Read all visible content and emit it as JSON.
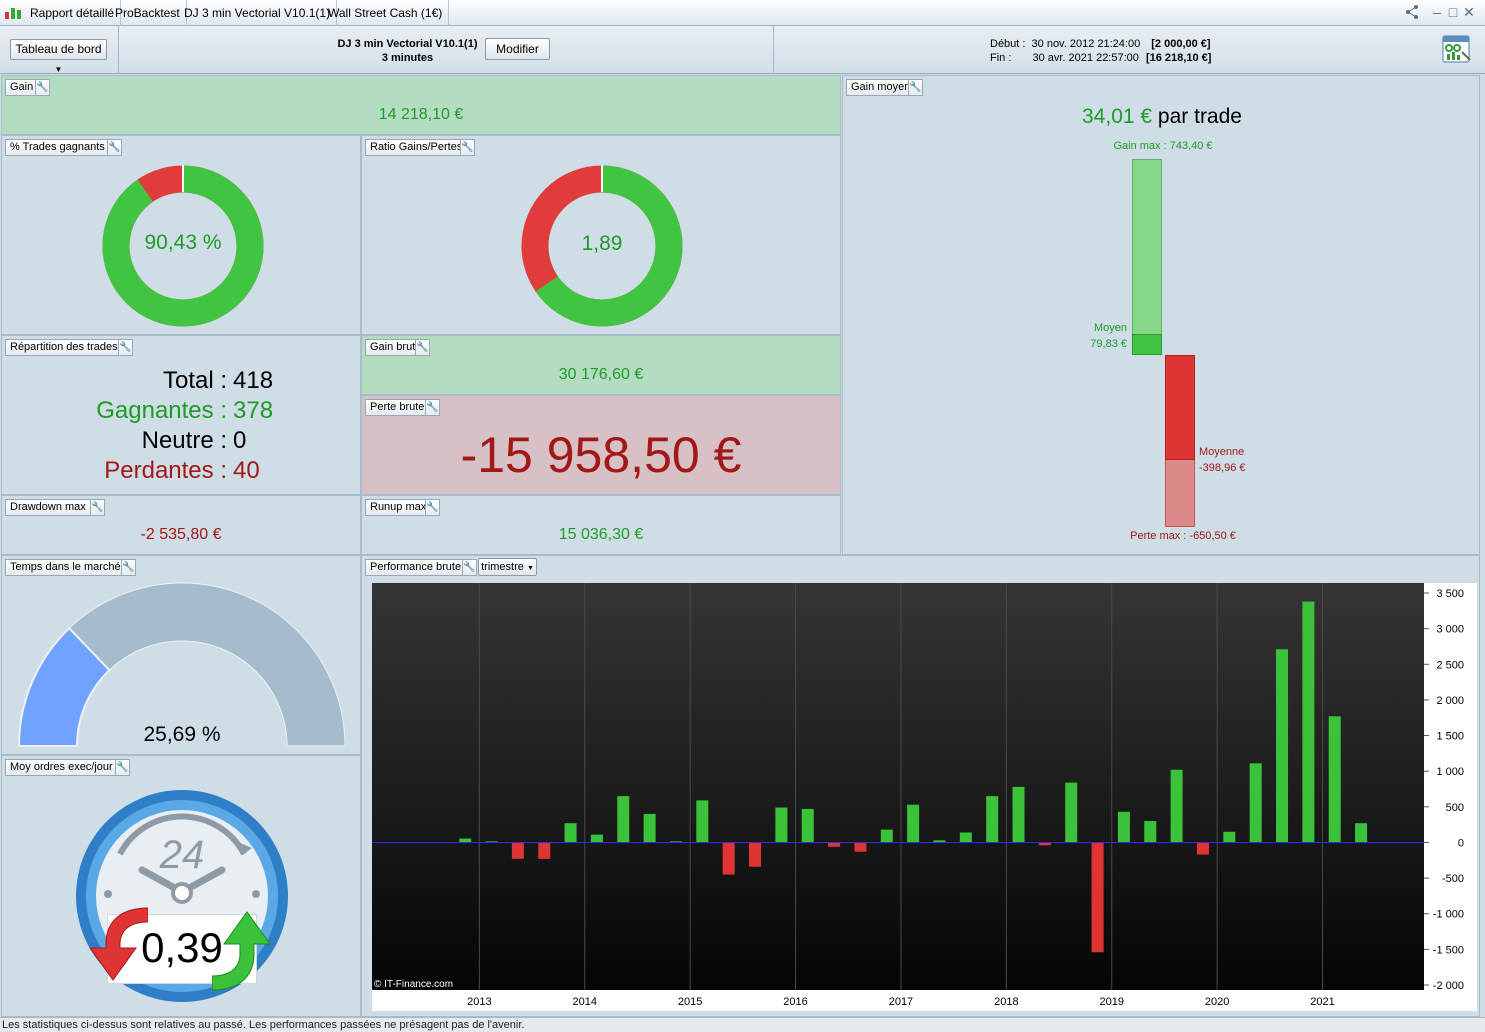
{
  "titlebar": {
    "tabs": [
      "Rapport détaillé",
      "ProBacktest",
      "DJ 3 min Vectorial V10.1(1)",
      "Wall Street Cash (1€)"
    ]
  },
  "header": {
    "dashboard_label": "Tableau de bord",
    "strategy_name": "DJ 3 min Vectorial V10.1(1)",
    "timeframe": "3 minutes",
    "modify_label": "Modifier",
    "start_label": "Début :",
    "start_date": "30 nov. 2012 21:24:00",
    "start_capital": "[2 000,00 €]",
    "end_label": "Fin :",
    "end_date": "30 avr. 2021 22:57:00",
    "end_capital": "[16 218,10 €]"
  },
  "gain": {
    "title": "Gain",
    "value": "14 218,10 €"
  },
  "win_pct": {
    "title": "% Trades gagnants",
    "value": "90,43 %",
    "fraction": 0.9043
  },
  "ratio": {
    "title": "Ratio Gains/Pertes",
    "value": "1,89",
    "fraction": 0.654
  },
  "avg_gain": {
    "title": "Gain moyen",
    "value": "34,01 €",
    "suffix": "par trade",
    "max_gain_label": "Gain max : 743,40 €",
    "avg_win_label": "Moyen",
    "avg_win_value": "79,83 €",
    "avg_loss_label": "Moyenne",
    "avg_loss_value": "-398,96 €",
    "max_loss_label": "Perte max : -650,50 €",
    "max_gain": 743.4,
    "avg_win": 79.83,
    "avg_loss": -398.96,
    "max_loss": -650.5
  },
  "distribution": {
    "title": "Répartition des trades",
    "total_label": "Total :",
    "total": "418",
    "win_label": "Gagnantes :",
    "win": "378",
    "neutral_label": "Neutre :",
    "neutral": "0",
    "loss_label": "Perdantes :",
    "loss": "40"
  },
  "gross_gain": {
    "title": "Gain brut",
    "value": "30 176,60 €"
  },
  "gross_loss": {
    "title": "Perte brute",
    "value": "-15 958,50 €"
  },
  "drawdown": {
    "title": "Drawdown max",
    "value": "-2 535,80 €"
  },
  "runup": {
    "title": "Runup max",
    "value": "15 036,30 €"
  },
  "time_in_market": {
    "title": "Temps dans le marché",
    "value": "25,69 %",
    "fraction": 0.2569
  },
  "orders": {
    "title": "Moy ordres exec/jour",
    "value": "0,39",
    "clock_label": "24"
  },
  "performance": {
    "title": "Performance brute",
    "period": "trimestre",
    "copyright": "© IT-Finance.com"
  },
  "chart_data": {
    "type": "bar",
    "x_ticks": [
      "2013",
      "2014",
      "2015",
      "2016",
      "2017",
      "2018",
      "2019",
      "2020",
      "2021"
    ],
    "y_ticks": [
      "3 500",
      "3 000",
      "2 500",
      "2 000",
      "1 500",
      "1 000",
      "500",
      "0",
      "-500",
      "-1 000",
      "-1 500",
      "-2 000"
    ],
    "ylim": [
      -2000,
      3500
    ],
    "categories": [
      "2012-Q4",
      "2013-Q1",
      "2013-Q2",
      "2013-Q3",
      "2013-Q4",
      "2014-Q1",
      "2014-Q2",
      "2014-Q3",
      "2014-Q4",
      "2015-Q1",
      "2015-Q2",
      "2015-Q3",
      "2015-Q4",
      "2016-Q1",
      "2016-Q2",
      "2016-Q3",
      "2016-Q4",
      "2017-Q1",
      "2017-Q2",
      "2017-Q3",
      "2017-Q4",
      "2018-Q1",
      "2018-Q2",
      "2018-Q3",
      "2018-Q4",
      "2019-Q1",
      "2019-Q2",
      "2019-Q3",
      "2019-Q4",
      "2020-Q1",
      "2020-Q2",
      "2020-Q3",
      "2020-Q4",
      "2021-Q1",
      "2021-Q2"
    ],
    "values": [
      55,
      15,
      -230,
      -230,
      270,
      110,
      650,
      400,
      15,
      590,
      -450,
      -340,
      490,
      470,
      -60,
      -130,
      180,
      530,
      30,
      140,
      650,
      780,
      -40,
      840,
      -1540,
      430,
      300,
      1020,
      -170,
      150,
      1110,
      2710,
      3380,
      1770,
      270
    ],
    "colors": {
      "positive": "#3ac33a",
      "negative": "#e03434"
    }
  },
  "footer": {
    "text": "Les statistiques ci-dessus sont relatives au passé. Les performances passées ne présagent pas de l'avenir."
  }
}
